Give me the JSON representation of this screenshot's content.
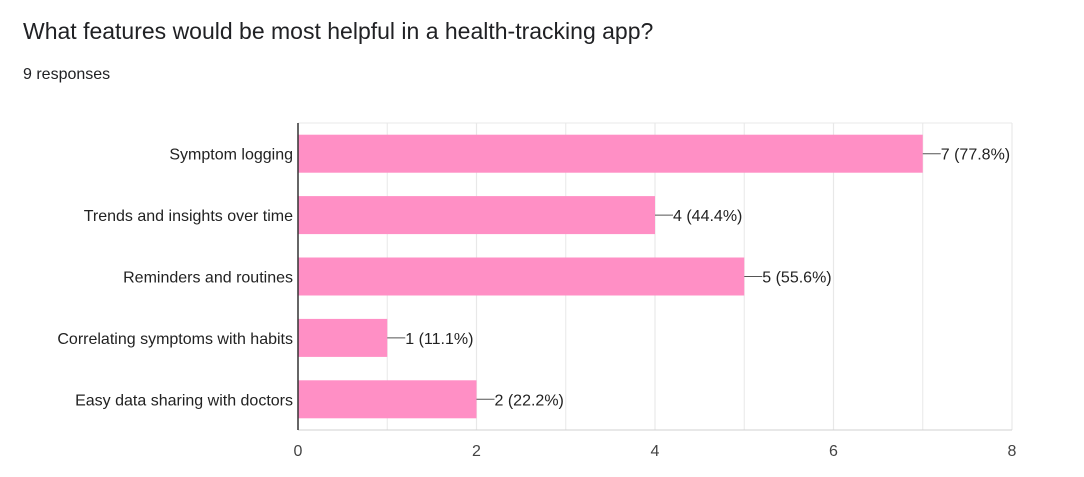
{
  "header": {
    "question": "What features would be most helpful in a health-tracking app?",
    "responses": "9 responses"
  },
  "colors": {
    "bar": "#ff8fc5",
    "grid": "#e8e8e8",
    "axis": "#333333"
  },
  "chart_data": {
    "type": "bar",
    "orientation": "horizontal",
    "title": "",
    "xlabel": "",
    "ylabel": "",
    "xlim": [
      0,
      8
    ],
    "xticks": [
      0,
      2,
      4,
      6,
      8
    ],
    "grid": true,
    "categories": [
      "Symptom logging",
      "Trends and insights over time",
      "Reminders and routines",
      "Correlating symptoms with habits",
      "Easy data sharing with doctors"
    ],
    "values": [
      7,
      4,
      5,
      1,
      2
    ],
    "data_labels": [
      "7 (77.8%)",
      "4 (44.4%)",
      "5 (55.6%)",
      "1 (11.1%)",
      "2 (22.2%)"
    ]
  }
}
